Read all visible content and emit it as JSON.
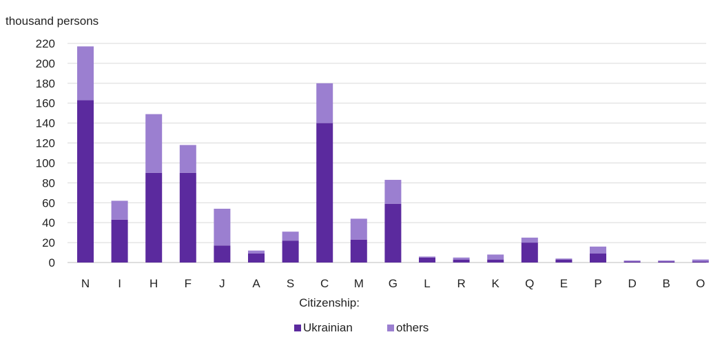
{
  "chart_data": {
    "type": "bar",
    "stacked": true,
    "unit_label": "thousand persons",
    "categories": [
      "N",
      "I",
      "H",
      "F",
      "J",
      "A",
      "S",
      "C",
      "M",
      "G",
      "L",
      "R",
      "K",
      "Q",
      "E",
      "P",
      "D",
      "B",
      "O"
    ],
    "series": [
      {
        "name": "Ukrainian",
        "color": "#5b2a9e",
        "values": [
          163,
          43,
          90,
          90,
          17,
          9,
          22,
          140,
          23,
          59,
          5,
          3,
          3,
          20,
          3,
          9,
          1,
          1,
          1
        ]
      },
      {
        "name": "others",
        "color": "#9b7fd0",
        "values": [
          54,
          19,
          59,
          28,
          37,
          3,
          9,
          40,
          21,
          24,
          1,
          2,
          5,
          5,
          1,
          7,
          1,
          1,
          2
        ]
      }
    ],
    "ylim": [
      0,
      220
    ],
    "yticks": [
      0,
      20,
      40,
      60,
      80,
      100,
      120,
      140,
      160,
      180,
      200,
      220
    ],
    "grid": true,
    "legend_title": "Citizenship:",
    "legend_position": "bottom-center"
  }
}
